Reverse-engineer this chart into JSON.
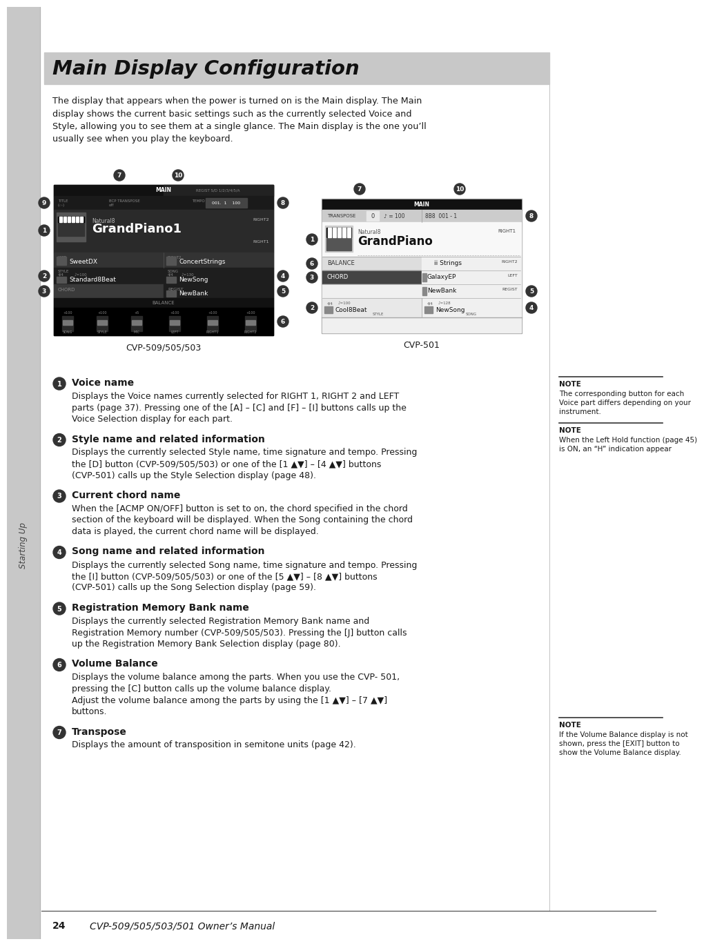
{
  "title": "Main Display Configuration",
  "title_bg": "#c8c8c8",
  "page_bg": "#ffffff",
  "sidebar_color": "#c8c8c8",
  "sidebar_text": "Starting Up",
  "page_number": "24",
  "footer_text": "CVP-509/505/503/501 Owner’s Manual",
  "intro_text": "The display that appears when the power is turned on is the Main display. The Main\ndisplay shows the current basic settings such as the currently selected Voice and\nStyle, allowing you to see them at a single glance. The Main display is the one you’ll\nusually see when you play the keyboard.",
  "diagram_label_left": "CVP-509/505/503",
  "diagram_label_right": "CVP-501",
  "sections": [
    {
      "number": "1",
      "title": "Voice name",
      "body": "Displays the Voice names currently selected for RIGHT 1, RIGHT 2 and LEFT\nparts (page 37). Pressing one of the [A] – [C] and [F] – [I] buttons calls up the\nVoice Selection display for each part."
    },
    {
      "number": "2",
      "title": "Style name and related information",
      "body": "Displays the currently selected Style name, time signature and tempo. Pressing\nthe [D] button (CVP-509/505/503) or one of the [1 ▲▼] – [4 ▲▼] buttons\n(CVP-501) calls up the Style Selection display (page 48)."
    },
    {
      "number": "3",
      "title": "Current chord name",
      "body": "When the [ACMP ON/OFF] button is set to on, the chord specified in the chord\nsection of the keyboard will be displayed. When the Song containing the chord\ndata is played, the current chord name will be displayed."
    },
    {
      "number": "4",
      "title": "Song name and related information",
      "body": "Displays the currently selected Song name, time signature and tempo. Pressing\nthe [I] button (CVP-509/505/503) or one of the [5 ▲▼] – [8 ▲▼] buttons\n(CVP-501) calls up the Song Selection display (page 59)."
    },
    {
      "number": "5",
      "title": "Registration Memory Bank name",
      "body": "Displays the currently selected Registration Memory Bank name and\nRegistration Memory number (CVP-509/505/503). Pressing the [J] button calls\nup the Registration Memory Bank Selection display (page 80)."
    },
    {
      "number": "6",
      "title": "Volume Balance",
      "body": "Displays the volume balance among the parts. When you use the CVP- 501,\npressing the [C] button calls up the volume balance display.\nAdjust the volume balance among the parts by using the [1 ▲▼] – [7 ▲▼]\nbuttons."
    },
    {
      "number": "7",
      "title": "Transpose",
      "body": "Displays the amount of transposition in semitone units (page 42)."
    }
  ],
  "note1_lines": [
    "The corresponding button for each",
    "Voice part differs depending on your",
    "instrument."
  ],
  "note2_lines": [
    "When the Left Hold function (page 45)",
    "is ON, an “H” indication appear"
  ],
  "note3_lines": [
    "If the Volume Balance display is not",
    "shown, press the [EXIT] button to",
    "show the Volume Balance display."
  ]
}
